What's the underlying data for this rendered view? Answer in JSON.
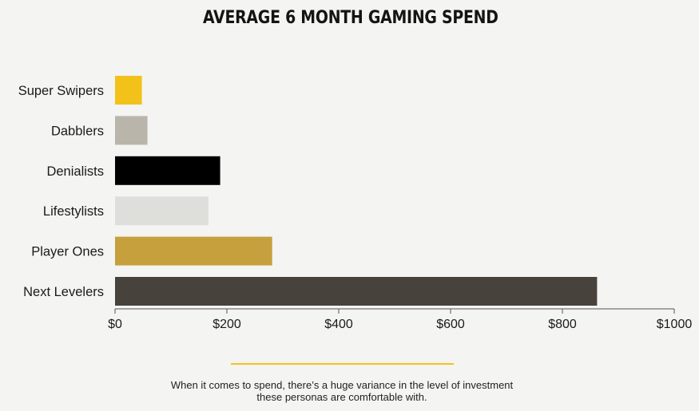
{
  "chart_data": {
    "type": "bar",
    "orientation": "horizontal",
    "title": "AVERAGE 6 MONTH GAMING SPEND",
    "categories": [
      "Super Swipers",
      "Dabblers",
      "Denialists",
      "Lifestylists",
      "Player Ones",
      "Next Levelers"
    ],
    "values": [
      48,
      58,
      188,
      167,
      281,
      862
    ],
    "colors": [
      "#f2c21b",
      "#b9b5aa",
      "#000000",
      "#dededa",
      "#c6a03c",
      "#48423c"
    ],
    "xlim": [
      0,
      1000
    ],
    "xticks": [
      0,
      200,
      400,
      600,
      800,
      1000
    ],
    "xtick_labels": [
      "$0",
      "$200",
      "$400",
      "$600",
      "$800",
      "$1000"
    ],
    "xlabel": "",
    "ylabel": "",
    "grid": false,
    "legend": "none"
  },
  "caption": {
    "line1": "When it comes to spend, there’s a huge variance in the level of investment",
    "line2": "these personas are comfortable with."
  },
  "colors": {
    "background": "#f4f4f3",
    "accent_rule": "#f2c21b",
    "axis": "#555555"
  }
}
